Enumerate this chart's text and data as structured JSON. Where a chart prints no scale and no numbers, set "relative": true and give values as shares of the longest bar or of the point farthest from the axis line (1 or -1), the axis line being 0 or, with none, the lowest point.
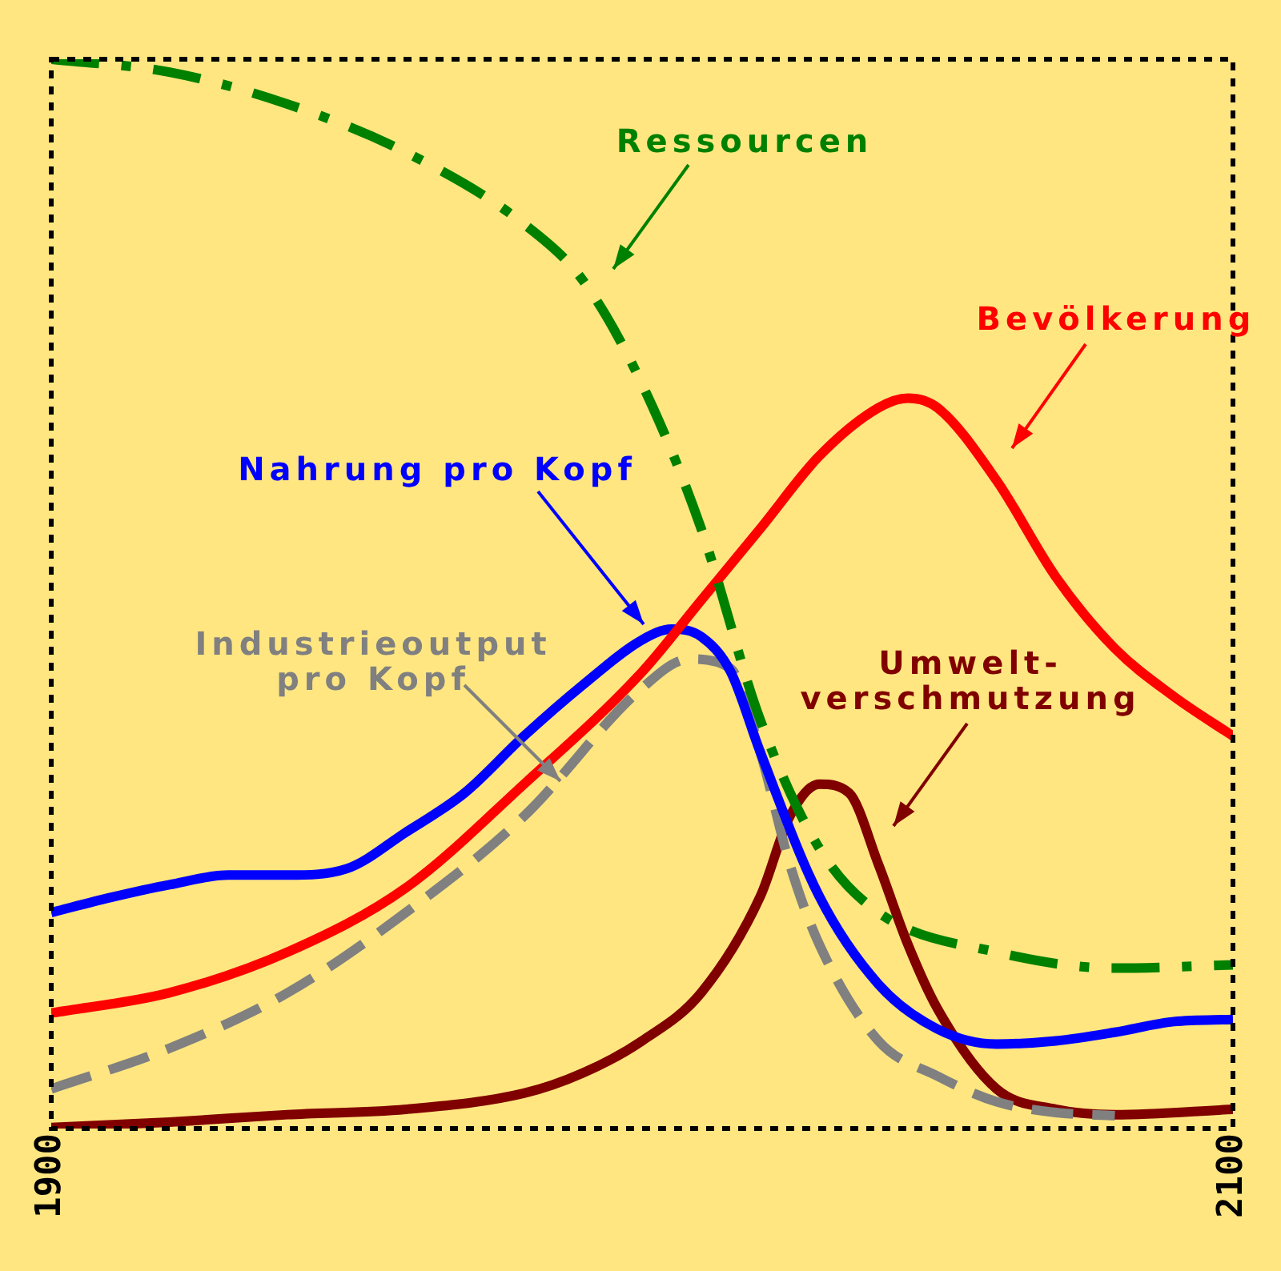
{
  "chart_data": {
    "type": "line",
    "relative": true,
    "xlim": [
      1900,
      2100
    ],
    "xticks": [
      1900,
      2100
    ],
    "tick_labels": "x",
    "grid": false,
    "legend": false,
    "marker": "none",
    "series": [
      {
        "name": "Ressourcen",
        "color": "#008000",
        "line_style": "dashdot",
        "x": [
          1900,
          1920,
          1940,
          1960,
          1980,
          1990,
          2000,
          2010,
          2020,
          2030,
          2040,
          2060,
          2080,
          2100
        ],
        "values": [
          1.0,
          0.988,
          0.958,
          0.913,
          0.846,
          0.793,
          0.696,
          0.561,
          0.382,
          0.262,
          0.202,
          0.165,
          0.15,
          0.153
        ]
      },
      {
        "name": "Bevölkerung",
        "color": "#ff0000",
        "line_style": "solid",
        "x": [
          1900,
          1920,
          1940,
          1960,
          1980,
          2000,
          2010,
          2020,
          2030,
          2040,
          2045,
          2050,
          2060,
          2070,
          2080,
          2090,
          2100
        ],
        "values": [
          0.108,
          0.127,
          0.165,
          0.225,
          0.322,
          0.427,
          0.494,
          0.561,
          0.629,
          0.674,
          0.683,
          0.674,
          0.606,
          0.516,
          0.449,
          0.404,
          0.367
        ]
      },
      {
        "name": "Nahrung pro Kopf",
        "color": "#0000ff",
        "line_style": "solid",
        "x": [
          1900,
          1910,
          1920,
          1930,
          1940,
          1950,
          1960,
          1970,
          1980,
          1990,
          2000,
          2005,
          2010,
          2015,
          2020,
          2030,
          2040,
          2050,
          2060,
          2070,
          2080,
          2090,
          2100
        ],
        "values": [
          0.202,
          0.216,
          0.228,
          0.237,
          0.237,
          0.243,
          0.277,
          0.314,
          0.367,
          0.415,
          0.457,
          0.467,
          0.46,
          0.427,
          0.352,
          0.217,
          0.135,
          0.093,
          0.079,
          0.082,
          0.09,
          0.1,
          0.102
        ]
      },
      {
        "name": "Industrieoutput\npro Kopf",
        "color": "#808080",
        "line_style": "dashed",
        "x": [
          1900,
          1920,
          1940,
          1960,
          1980,
          2000,
          2008,
          2015,
          2020,
          2025,
          2030,
          2040,
          2050,
          2060,
          2070,
          2080
        ],
        "values": [
          0.037,
          0.075,
          0.127,
          0.202,
          0.292,
          0.412,
          0.439,
          0.43,
          0.352,
          0.247,
          0.172,
          0.082,
          0.049,
          0.025,
          0.015,
          0.012
        ]
      },
      {
        "name": "Umwelt-\nverschmutzung",
        "color": "#800000",
        "line_style": "solid",
        "x": [
          1900,
          1920,
          1940,
          1960,
          1980,
          1990,
          2000,
          2010,
          2020,
          2025,
          2030,
          2035,
          2040,
          2045,
          2050,
          2060,
          2070,
          2080,
          2100
        ],
        "values": [
          0.001,
          0.006,
          0.013,
          0.018,
          0.033,
          0.052,
          0.082,
          0.127,
          0.217,
          0.292,
          0.322,
          0.314,
          0.247,
          0.172,
          0.112,
          0.037,
          0.018,
          0.013,
          0.018
        ]
      }
    ]
  }
}
